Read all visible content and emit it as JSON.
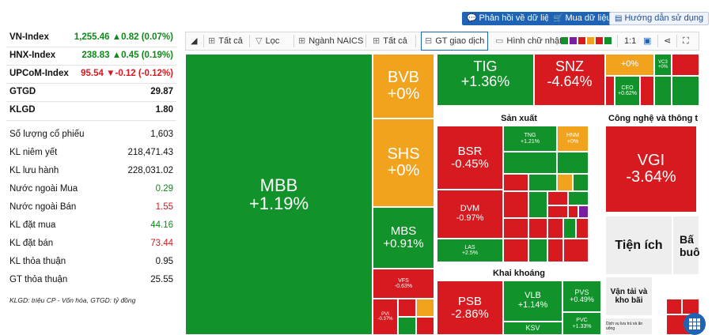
{
  "top_buttons": {
    "feedback": "Phản hồi về dữ liệu",
    "buy": "Mua dữ liệu",
    "guide": "Hướng dẫn sử dụng"
  },
  "indices": [
    {
      "name": "VN-Index",
      "value": "1,255.46",
      "change": "▲0.82 (0.07%)",
      "dir": "up"
    },
    {
      "name": "HNX-Index",
      "value": "238.83",
      "change": "▲0.45 (0.19%)",
      "dir": "up"
    },
    {
      "name": "UPCoM-Index",
      "value": "95.54",
      "change": "▼-0.12 (-0.12%)",
      "dir": "down"
    }
  ],
  "stats": {
    "gtgd": {
      "label": "GTGD",
      "value": "29.87"
    },
    "klgd": {
      "label": "KLGD",
      "value": "1.80"
    },
    "so_luong_cp": {
      "label": "Số lượng cổ phiếu",
      "value": "1,603"
    },
    "kl_niem_yet": {
      "label": "KL niêm yết",
      "value": "218,471.43"
    },
    "kl_luu_hanh": {
      "label": "KL lưu hành",
      "value": "228,031.02"
    },
    "nn_mua": {
      "label": "Nước ngoài Mua",
      "value": "0.29"
    },
    "nn_ban": {
      "label": "Nước ngoài Bán",
      "value": "1.55"
    },
    "kl_dat_mua": {
      "label": "KL đặt mua",
      "value": "44.16"
    },
    "kl_dat_ban": {
      "label": "KL đặt bán",
      "value": "73.44"
    },
    "kl_thoa_thuan": {
      "label": "KL thỏa thuận",
      "value": "0.95"
    },
    "gt_thoa_thuan": {
      "label": "GT thỏa thuận",
      "value": "25.55"
    }
  },
  "footnote": "KLGD: triệu CP - Vốn hóa, GTGD: tỷ đồng",
  "toolbar": {
    "all1": "Tất cả",
    "filter": "Lọc",
    "naics": "Ngành NAICS",
    "all2": "Tất cả",
    "gt": "GT giao dịch",
    "rect": "Hình chữ nhật",
    "ratio": "1:1",
    "swatches": [
      "#12922a",
      "#7b1fa2",
      "#d61a1f",
      "#f2a31e",
      "#d61a1f",
      "#12922a"
    ]
  },
  "sectors": {
    "san_xuat": "Sản xuất",
    "cong_nghe": "Công nghệ và thông t",
    "khai_khoang": "Khai khoáng",
    "tien_ich": "Tiện ích",
    "bat_dong_san": "Bấ",
    "bat_dong_san2": "buô",
    "van_tai": "Vận tải và kho bãi",
    "dich_vu": "Dịch vụ lưu trú và ăn uống"
  },
  "tiles": {
    "mbb": {
      "sym": "MBB",
      "chg": "+1.19%"
    },
    "bvb": {
      "sym": "BVB",
      "chg": "+0%"
    },
    "shs": {
      "sym": "SHS",
      "chg": "+0%"
    },
    "mbs": {
      "sym": "MBS",
      "chg": "+0.91%"
    },
    "vfs": {
      "sym": "VFS",
      "chg": "-0.63%"
    },
    "pvi": {
      "sym": "PVI",
      "chg": "-0.37%"
    },
    "tig": {
      "sym": "TIG",
      "chg": "+1.36%"
    },
    "snz": {
      "sym": "SNZ",
      "chg": "-4.64%"
    },
    "top_a": {
      "chg": "+0%"
    },
    "vc3": {
      "sym": "VC3",
      "chg": "+0%"
    },
    "ceo": {
      "sym": "CEO",
      "chg": "+0.62%"
    },
    "bsr": {
      "sym": "BSR",
      "chg": "-0.45%"
    },
    "tng": {
      "sym": "TNG",
      "chg": "+1.21%"
    },
    "hnm": {
      "sym": "HNM",
      "chg": "+0%"
    },
    "dvm": {
      "sym": "DVM",
      "chg": "-0.97%"
    },
    "las": {
      "sym": "LAS",
      "chg": "+2.5%"
    },
    "vgi": {
      "sym": "VGI",
      "chg": "-3.64%"
    },
    "psb": {
      "sym": "PSB",
      "chg": "-2.86%"
    },
    "vlb": {
      "sym": "VLB",
      "chg": "+1.14%"
    },
    "pvs": {
      "sym": "PVS",
      "chg": "+0.49%"
    },
    "pvc": {
      "sym": "PVC",
      "chg": "+1.33%"
    },
    "ksv": {
      "sym": "KSV"
    }
  }
}
